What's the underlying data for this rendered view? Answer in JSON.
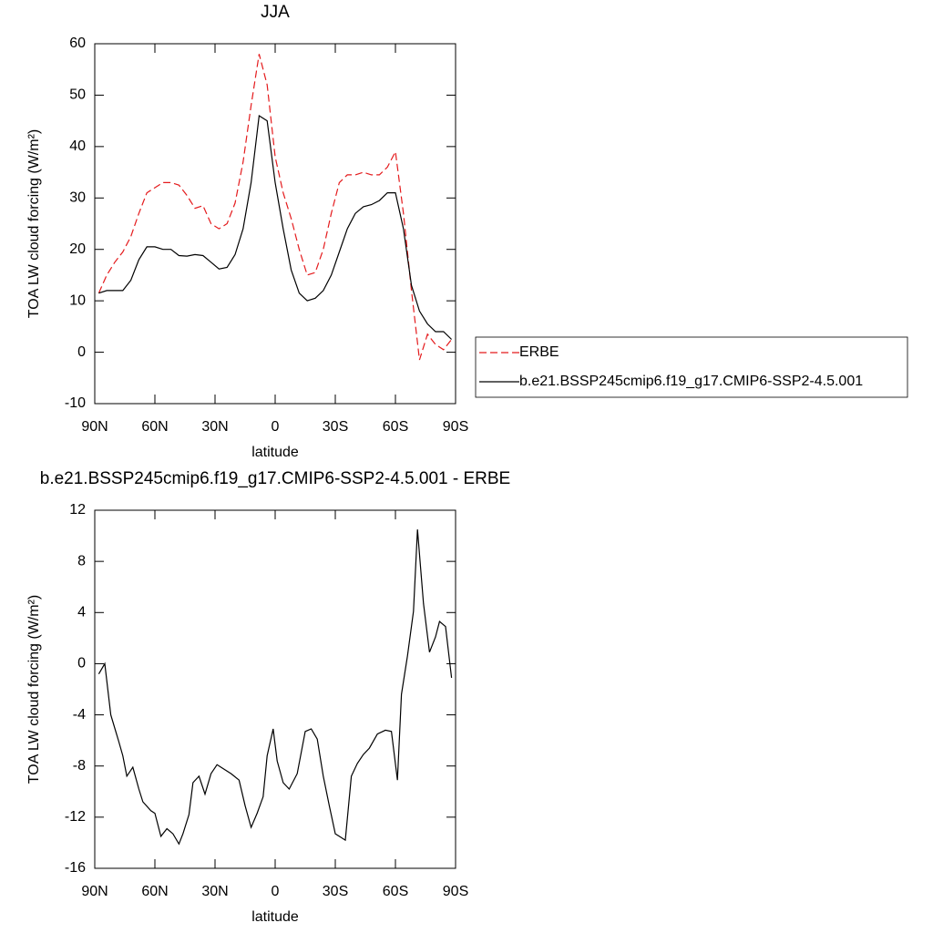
{
  "chart_data": [
    {
      "type": "line",
      "title": "JJA",
      "xlabel": "latitude",
      "ylabel": "TOA LW cloud forcing (W/m²)",
      "x": [
        88,
        84,
        80,
        76,
        72,
        68,
        64,
        60,
        56,
        52,
        48,
        44,
        40,
        36,
        32,
        28,
        24,
        20,
        16,
        12,
        8,
        4,
        0,
        -4,
        -8,
        -12,
        -16,
        -20,
        -24,
        -28,
        -32,
        -36,
        -40,
        -44,
        -48,
        -52,
        -56,
        -60,
        -64,
        -68,
        -72,
        -76,
        -80,
        -84,
        -88
      ],
      "series": [
        {
          "name": "ERBE",
          "color": "#e41a1c",
          "dash": true,
          "values": [
            11.5,
            15,
            17.5,
            19.5,
            22.5,
            27,
            31,
            32,
            33,
            33,
            32.5,
            30.5,
            28,
            28.5,
            25,
            24,
            25,
            29,
            37,
            48,
            58,
            52,
            38,
            31,
            26,
            20,
            15,
            15.5,
            20,
            27,
            33,
            34.5,
            34.5,
            35,
            34.5,
            34.5,
            36,
            39,
            27,
            12,
            -1.5,
            3.5,
            1.5,
            0.5,
            2.5
          ]
        },
        {
          "name": "b.e21.BSSP245cmip6.f19_g17.CMIP6-SSP2-4.5.001",
          "color": "#000000",
          "dash": false,
          "values": [
            11.5,
            12,
            12,
            12,
            14,
            18,
            20.5,
            20.5,
            20,
            20,
            18.8,
            18.7,
            19,
            18.8,
            17.5,
            16.2,
            16.5,
            19,
            24,
            33,
            46,
            45,
            33,
            24,
            16,
            11.5,
            10,
            10.5,
            12,
            15,
            19.5,
            24,
            27,
            28.3,
            28.7,
            29.5,
            31,
            31,
            24,
            13,
            8,
            5.5,
            4,
            4,
            2.5
          ]
        }
      ],
      "xlim": [
        90,
        -90
      ],
      "xticks": [
        {
          "value": 90,
          "label": "90N"
        },
        {
          "value": 60,
          "label": "60N"
        },
        {
          "value": 30,
          "label": "30N"
        },
        0,
        {
          "value": -30,
          "label": "30S"
        },
        {
          "value": -60,
          "label": "60S"
        },
        {
          "value": -90,
          "label": "90S"
        }
      ],
      "ylim": [
        -10,
        60
      ],
      "yticks": [
        -10,
        0,
        10,
        20,
        30,
        40,
        50,
        60
      ],
      "legend": "right"
    },
    {
      "type": "line",
      "title": "b.e21.BSSP245cmip6.f19_g17.CMIP6-SSP2-4.5.001 - ERBE",
      "xlabel": "latitude",
      "ylabel": "TOA LW cloud forcing (W/m²)",
      "x": [
        88,
        85,
        82,
        78,
        76,
        74,
        71,
        68,
        66,
        62,
        60,
        57,
        54,
        51,
        48,
        46,
        43,
        41,
        38,
        35,
        32,
        29,
        26,
        22,
        18,
        15,
        12,
        9,
        6,
        4,
        1,
        -1,
        -4,
        -7,
        -11,
        -15,
        -18,
        -21,
        -24,
        -27,
        -30,
        -32,
        -35,
        -38,
        -41,
        -44,
        -47,
        -51,
        -55,
        -58,
        -61,
        -63,
        -66,
        -69,
        -71,
        -74,
        -77,
        -80,
        -82,
        -85,
        -88
      ],
      "color": "#000000",
      "values": [
        -0.8,
        0,
        -4,
        -6.1,
        -7.2,
        -8.8,
        -8.1,
        -9.8,
        -10.8,
        -11.5,
        -11.7,
        -13.5,
        -12.9,
        -13.3,
        -14.1,
        -13.3,
        -11.8,
        -9.3,
        -8.8,
        -10.2,
        -8.6,
        -7.9,
        -8.2,
        -8.6,
        -9.1,
        -11.1,
        -12.8,
        -11.7,
        -10.4,
        -7.2,
        -5.1,
        -7.6,
        -9.3,
        -9.8,
        -8.6,
        -5.3,
        -5.1,
        -5.9,
        -8.8,
        -11.1,
        -13.3,
        -13.5,
        -13.8,
        -8.8,
        -7.8,
        -7.1,
        -6.6,
        -5.5,
        -5.2,
        -5.3,
        -9.1,
        -2.4,
        0.6,
        4.1,
        10.5,
        4.7,
        0.9,
        2.1,
        3.3,
        2.9,
        -1.1
      ],
      "xlim": [
        90,
        -90
      ],
      "xticks": [
        {
          "value": 90,
          "label": "90N"
        },
        {
          "value": 60,
          "label": "60N"
        },
        {
          "value": 30,
          "label": "30N"
        },
        0,
        {
          "value": -30,
          "label": "30S"
        },
        {
          "value": -60,
          "label": "60S"
        },
        {
          "value": -90,
          "label": "90S"
        }
      ],
      "ylim": [
        -16,
        12
      ],
      "yticks": [
        -16,
        -12,
        -8,
        -4,
        0,
        4,
        8,
        12
      ]
    }
  ]
}
